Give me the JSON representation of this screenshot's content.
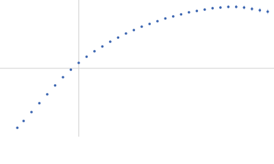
{
  "chart_data": {
    "type": "scatter",
    "x": [
      -0.78,
      -0.7,
      -0.6,
      -0.5,
      -0.4,
      -0.3,
      -0.2,
      -0.1,
      0,
      0.1,
      0.2,
      0.3,
      0.4,
      0.5,
      0.6,
      0.7,
      0.8,
      0.9,
      1.0,
      1.1,
      1.2,
      1.3,
      1.4,
      1.5,
      1.6,
      1.7,
      1.8,
      1.9,
      2.0,
      2.1,
      2.2,
      2.3,
      2.4
    ],
    "series": [
      {
        "color": "#3a64b0",
        "values": [
          -0.87,
          -0.77,
          -0.64,
          -0.51,
          -0.38,
          -0.25,
          -0.13,
          -0.02,
          0.08,
          0.17,
          0.25,
          0.32,
          0.39,
          0.45,
          0.51,
          0.56,
          0.61,
          0.65,
          0.69,
          0.73,
          0.76,
          0.79,
          0.82,
          0.84,
          0.86,
          0.88,
          0.89,
          0.9,
          0.9,
          0.89,
          0.87,
          0.85,
          0.83
        ],
        "errors": [
          0.005,
          0.005,
          0.005,
          0.005,
          0.005,
          0.005,
          0.005,
          0.006,
          0.006,
          0.006,
          0.007,
          0.007,
          0.008,
          0.008,
          0.009,
          0.01,
          0.01,
          0.011,
          0.012,
          0.013,
          0.014,
          0.015,
          0.016,
          0.018,
          0.019,
          0.02,
          0.022,
          0.024,
          0.026,
          0.028,
          0.03,
          0.033,
          0.036
        ],
        "error_color": "#a9bde3"
      }
    ],
    "xlim": [
      -1,
      2.48
    ],
    "ylim": [
      -1,
      1
    ],
    "zero_lines": true,
    "zero_line_color": "#cccccc"
  }
}
